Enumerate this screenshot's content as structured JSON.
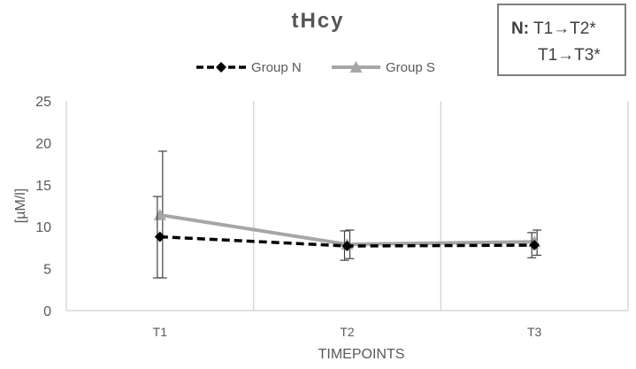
{
  "chart_data": {
    "type": "line",
    "title": "tHcy",
    "xlabel": "TIMEPOINTS",
    "ylabel": "[µM/l]",
    "categories": [
      "T1",
      "T2",
      "T3"
    ],
    "ylim": [
      0,
      25
    ],
    "yticks": [
      0,
      5,
      10,
      15,
      20,
      25
    ],
    "grid": "vertical",
    "legend": "top",
    "series": [
      {
        "name": "Group N",
        "values": [
          8.8,
          7.7,
          7.8
        ],
        "error_low": [
          3.9,
          6.0,
          6.3
        ],
        "error_high": [
          13.6,
          9.5,
          9.3
        ],
        "color": "#000000",
        "line_style": "dashed",
        "marker": "diamond"
      },
      {
        "name": "Group S",
        "values": [
          11.4,
          7.9,
          8.2
        ],
        "error_low": [
          3.9,
          6.2,
          6.6
        ],
        "error_high": [
          19.0,
          9.6,
          9.6
        ],
        "color": "#a6a6a6",
        "line_style": "solid",
        "marker": "triangle"
      }
    ]
  },
  "annotation": {
    "prefix": "N:",
    "line1": "T1→T2*",
    "line2": "T1→T3*"
  }
}
